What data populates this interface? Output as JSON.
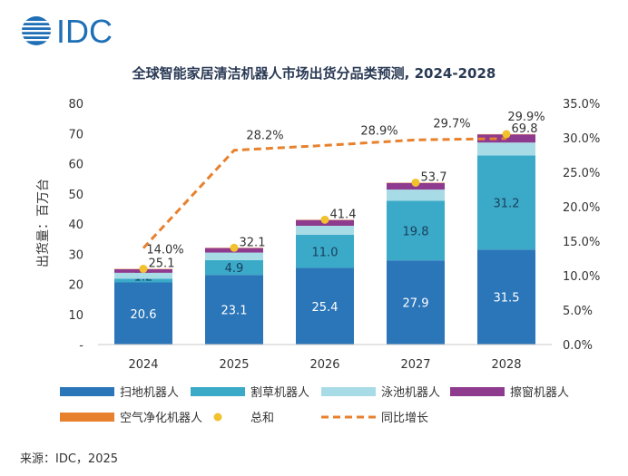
{
  "brand": {
    "logo_text": "IDC",
    "color": "#1f6fb7"
  },
  "source": "来源：IDC，2025",
  "chart_data": {
    "type": "bar",
    "stacked": true,
    "title": "全球智能家居清洁机器人市场出货分品类预测, 2024-2028",
    "ylabel": "出货量：百万台",
    "ylim": [
      0,
      80
    ],
    "y_ticks": [
      "-",
      "10",
      "20",
      "30",
      "40",
      "50",
      "60",
      "70",
      "80"
    ],
    "y2lim": [
      0,
      35
    ],
    "y2_ticks": [
      "0.0%",
      "5.0%",
      "10.0%",
      "15.0%",
      "20.0%",
      "25.0%",
      "30.0%",
      "35.0%"
    ],
    "categories": [
      "2024",
      "2025",
      "2026",
      "2027",
      "2028"
    ],
    "series": [
      {
        "name": "扫地机器人",
        "color": "#2b75b9",
        "values": [
          20.6,
          23.1,
          25.4,
          27.9,
          31.5
        ],
        "labels": [
          "20.6",
          "23.1",
          "25.4",
          "27.9",
          "31.5"
        ]
      },
      {
        "name": "割草机器人",
        "color": "#3aaac8",
        "values": [
          1.2,
          4.9,
          11.0,
          19.8,
          31.2
        ],
        "labels": [
          "1.2",
          "4.9",
          "11.0",
          "19.8",
          "31.2"
        ]
      },
      {
        "name": "泳池机器人",
        "color": "#a7dce6",
        "values": [
          2.0,
          2.5,
          3.0,
          3.7,
          4.3
        ],
        "labels": [
          "",
          "",
          "",
          "",
          ""
        ]
      },
      {
        "name": "擦窗机器人",
        "color": "#8e3a8e",
        "values": [
          1.2,
          1.5,
          1.9,
          2.2,
          2.7
        ],
        "labels": [
          "",
          "",
          "",
          "",
          ""
        ]
      },
      {
        "name": "空气净化机器人",
        "color": "#e8812e",
        "values": [
          0.1,
          0.1,
          0.1,
          0.1,
          0.1
        ],
        "labels": [
          "",
          "",
          "",
          "",
          ""
        ]
      }
    ],
    "totals": {
      "name": "总和",
      "color": "#f2c12e",
      "values": [
        25.1,
        32.1,
        41.4,
        53.7,
        69.8
      ],
      "labels": [
        "25.1",
        "32.1",
        "41.4",
        "53.7",
        "69.8"
      ]
    },
    "growth": {
      "name": "同比增长",
      "color": "#e8812e",
      "axis": "right",
      "values": [
        14.0,
        28.2,
        28.9,
        29.7,
        29.9
      ],
      "labels": [
        "14.0%",
        "28.2%",
        "28.9%",
        "29.7%",
        "29.9%"
      ]
    },
    "grid": false,
    "legend_position": "bottom"
  }
}
